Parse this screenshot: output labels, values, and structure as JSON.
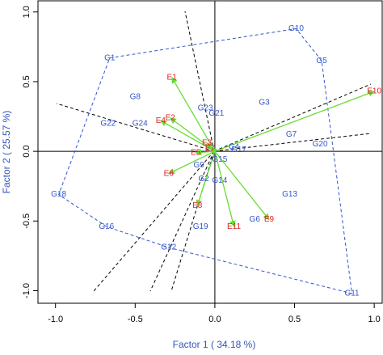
{
  "chart_data": {
    "type": "biplot",
    "xlabel": "Factor 1 ( 34.18 %)",
    "ylabel": "Factor 2 ( 25.57 %)",
    "xlim": [
      -1.11,
      1.05
    ],
    "ylim": [
      -1.09,
      1.08
    ],
    "xticks": [
      {
        "value": -1,
        "label": "-1.0"
      },
      {
        "value": -0.5,
        "label": "-0.5"
      },
      {
        "value": 0,
        "label": "0.0"
      },
      {
        "value": 0.5,
        "label": "0.5"
      },
      {
        "value": 1,
        "label": "1.0"
      }
    ],
    "yticks": [
      {
        "value": -1,
        "label": "-1.0"
      },
      {
        "value": -0.5,
        "label": "-0.5"
      },
      {
        "value": 0,
        "label": "0.0"
      },
      {
        "value": 0.5,
        "label": "0.5"
      },
      {
        "value": 1,
        "label": "1.0"
      }
    ],
    "genotypes": {
      "color": "#3355cc",
      "labels": [
        "G1",
        "G2",
        "G3",
        "G4",
        "G5",
        "G6",
        "G7",
        "G8",
        "G9",
        "G10",
        "G11",
        "G12",
        "G13",
        "G14",
        "G15",
        "G16",
        "G17",
        "G18",
        "G19",
        "G20",
        "G21",
        "G22",
        "G23",
        "G24"
      ],
      "x": [
        -0.66,
        -0.07,
        0.31,
        0.12,
        0.67,
        0.25,
        0.48,
        -0.5,
        -0.1,
        0.51,
        0.86,
        -0.29,
        0.47,
        0.03,
        0.03,
        -0.68,
        0.15,
        -0.98,
        -0.09,
        0.66,
        0.01,
        -0.67,
        -0.06,
        -0.47
      ],
      "y": [
        0.67,
        -0.2,
        0.35,
        0.03,
        0.65,
        -0.49,
        0.12,
        0.39,
        -0.1,
        0.88,
        -1.02,
        -0.69,
        -0.31,
        -0.21,
        -0.06,
        -0.54,
        0.01,
        -0.31,
        -0.54,
        0.05,
        0.27,
        0.2,
        0.31,
        0.2
      ]
    },
    "polygon": {
      "color": "#3355cc",
      "vertices": [
        0,
        9,
        4,
        10,
        11,
        15,
        17
      ]
    },
    "environments": {
      "color": "#dd2222",
      "arrow_color": "#66dd33",
      "labels": [
        "E1",
        "E2",
        "E3",
        "E4",
        "E5",
        "E6",
        "E7",
        "E8",
        "E9",
        "E10",
        "E11"
      ],
      "x": [
        -0.27,
        -0.28,
        -0.05,
        -0.34,
        -0.12,
        -0.29,
        -0.03,
        -0.11,
        0.34,
        1.0,
        0.12
      ],
      "y": [
        0.53,
        0.24,
        0.06,
        0.22,
        -0.01,
        -0.16,
        0.02,
        -0.39,
        -0.49,
        0.43,
        -0.54
      ]
    }
  }
}
